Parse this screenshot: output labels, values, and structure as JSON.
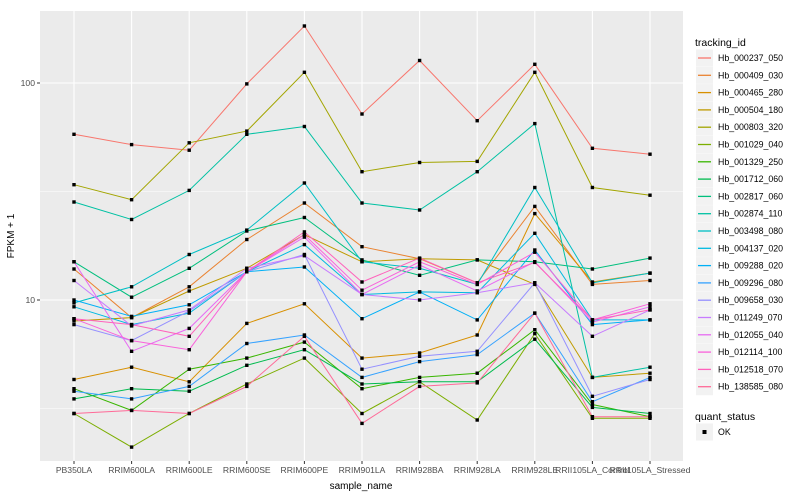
{
  "figure": {
    "background": "#FFFFFF",
    "panel_background": "#EBEBEB",
    "gridline_color": "#FFFFFF",
    "tick_color": "#333333",
    "tick_label_color": "#4D4D4D",
    "point_color": "#000000",
    "legend_key_background": "#F2F2F2"
  },
  "chart_data": {
    "type": "line",
    "title": "",
    "xlabel": "sample_name",
    "ylabel": "FPKM + 1",
    "y_scale": "log10",
    "y_ticks": [
      10,
      100
    ],
    "y_minor_gridlines": [
      3.162,
      31.62
    ],
    "ylim": [
      1.8,
      215
    ],
    "grid": true,
    "legend_title": "tracking_id",
    "legend_position": "right",
    "point_marker": "filled-black-square",
    "categories": [
      "PB350LA",
      "RRIM600LA",
      "RRIM600LE",
      "RRIM600SE",
      "RRIM600PE",
      "RRIM901LA",
      "RRIM928BA",
      "RRIM928LA",
      "RRIM928LE",
      "RRII105LA_Control",
      "RRII105LA_Stressed"
    ],
    "series": [
      {
        "name": "Hb_000237_050",
        "color": "#F8766D",
        "values": [
          58,
          52,
          49,
          99,
          183,
          72,
          127,
          67,
          122,
          50,
          47
        ]
      },
      {
        "name": "Hb_000409_030",
        "color": "#EA8331",
        "values": [
          13.9,
          8.3,
          11.5,
          19,
          28,
          17.6,
          15.5,
          12,
          27,
          11.8,
          12.3
        ]
      },
      {
        "name": "Hb_000465_280",
        "color": "#D89000",
        "values": [
          4.3,
          4.9,
          4.2,
          7.8,
          9.6,
          5.4,
          5.7,
          6.9,
          25,
          12.1,
          13.3
        ]
      },
      {
        "name": "Hb_000504_180",
        "color": "#C09B00",
        "values": [
          8.0,
          8.3,
          11,
          14,
          20,
          15,
          15.5,
          15.3,
          11.8,
          4.4,
          4.6
        ]
      },
      {
        "name": "Hb_000803_320",
        "color": "#A3A500",
        "values": [
          34,
          29,
          53,
          60,
          112,
          39,
          43,
          43.5,
          112,
          33,
          30.4
        ]
      },
      {
        "name": "Hb_001029_040",
        "color": "#7CAE00",
        "values": [
          3.0,
          2.1,
          3.0,
          4.1,
          5.4,
          3.0,
          4.2,
          2.8,
          7.0,
          2.85,
          2.85
        ]
      },
      {
        "name": "Hb_001329_250",
        "color": "#39B600",
        "values": [
          3.9,
          3.1,
          4.8,
          5.4,
          6.4,
          3.9,
          4.4,
          4.6,
          7.3,
          3.3,
          2.9
        ]
      },
      {
        "name": "Hb_001712_060",
        "color": "#00BB4E",
        "values": [
          3.5,
          3.9,
          3.8,
          5.0,
          5.9,
          4.1,
          4.2,
          4.2,
          6.6,
          3.2,
          3.0
        ]
      },
      {
        "name": "Hb_002817_060",
        "color": "#00BF7D",
        "values": [
          15,
          10.3,
          14,
          20.8,
          24,
          15.3,
          13,
          15.3,
          15,
          13.9,
          15.6
        ]
      },
      {
        "name": "Hb_002874_110",
        "color": "#00C1A3",
        "values": [
          28.3,
          23.5,
          32,
          58,
          63,
          28,
          26,
          39,
          65,
          4.4,
          4.9
        ]
      },
      {
        "name": "Hb_003498_080",
        "color": "#00BFC4",
        "values": [
          9.7,
          11.5,
          16.2,
          21,
          34.6,
          15,
          14,
          11.8,
          33,
          12.0,
          13.3
        ]
      },
      {
        "name": "Hb_004137_020",
        "color": "#00BAE0",
        "values": [
          9.3,
          7.7,
          8.7,
          13.5,
          18,
          10.6,
          10.9,
          10.8,
          20.3,
          8.1,
          8.1
        ]
      },
      {
        "name": "Hb_009288_020",
        "color": "#00B0F6",
        "values": [
          10,
          8.4,
          9.5,
          13.5,
          14.2,
          8.2,
          10.9,
          8.1,
          17,
          7.7,
          8.1
        ]
      },
      {
        "name": "Hb_009296_080",
        "color": "#35A2FF",
        "values": [
          3.8,
          3.5,
          4.0,
          6.3,
          6.9,
          4.4,
          5.2,
          5.6,
          8.7,
          3.4,
          4.4
        ]
      },
      {
        "name": "Hb_009658_030",
        "color": "#9590FF",
        "values": [
          7.7,
          6.5,
          8.9,
          13.5,
          16.2,
          4.8,
          5.5,
          5.8,
          12,
          3.6,
          4.3
        ]
      },
      {
        "name": "Hb_011249_070",
        "color": "#C77CFF",
        "values": [
          12.3,
          7.6,
          9.0,
          14,
          16,
          10.6,
          10,
          10.8,
          12,
          6.8,
          9.0
        ]
      },
      {
        "name": "Hb_012055_040",
        "color": "#E76BF3",
        "values": [
          15,
          5.8,
          7.4,
          13.5,
          19.5,
          10.6,
          14.5,
          11,
          15,
          7.9,
          9.3
        ]
      },
      {
        "name": "Hb_012114_100",
        "color": "#FA62DB",
        "values": [
          8.2,
          6.5,
          5.9,
          13.5,
          20,
          11.1,
          15,
          11.8,
          16.6,
          8.1,
          9.6
        ]
      },
      {
        "name": "Hb_012518_070",
        "color": "#FF62BC",
        "values": [
          8.2,
          7.7,
          6.8,
          13.5,
          20.6,
          12.1,
          15.6,
          12,
          14.9,
          8.1,
          9.0
        ]
      },
      {
        "name": "Hb_138585_080",
        "color": "#FF6A98",
        "values": [
          3.0,
          3.1,
          3.0,
          4.0,
          6.8,
          2.7,
          4.0,
          4.15,
          8.7,
          2.9,
          2.9
        ]
      }
    ],
    "quant_legend": {
      "title": "quant_status",
      "entries": [
        "OK"
      ],
      "marker": "black-square"
    }
  }
}
